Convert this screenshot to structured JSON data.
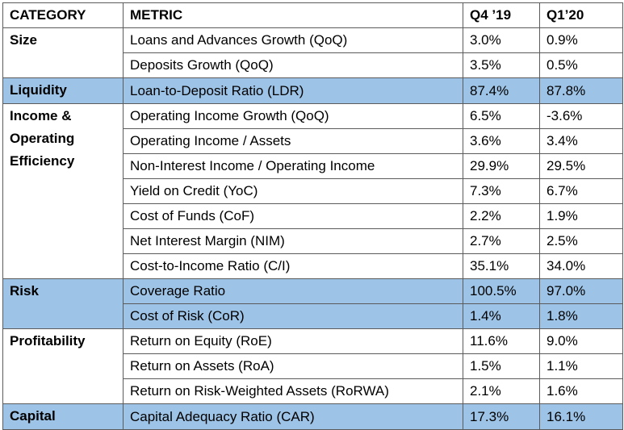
{
  "headers": [
    "CATEGORY",
    "METRIC",
    "Q4 ’19",
    "Q1’20"
  ],
  "highlight_color": "#9dc3e6",
  "groups": [
    {
      "category": "Size",
      "highlighted": false,
      "rows": [
        {
          "metric": "Loans and Advances Growth (QoQ)",
          "q4_19": "3.0%",
          "q1_20": "0.9%",
          "highlighted": false
        },
        {
          "metric": "Deposits Growth (QoQ)",
          "q4_19": "3.5%",
          "q1_20": "0.5%",
          "highlighted": false
        }
      ]
    },
    {
      "category": "Liquidity",
      "highlighted": true,
      "rows": [
        {
          "metric": "Loan-to-Deposit Ratio (LDR)",
          "q4_19": "87.4%",
          "q1_20": "87.8%",
          "highlighted": true
        }
      ]
    },
    {
      "category": "Income & Operating Efficiency",
      "highlighted": false,
      "rows": [
        {
          "metric": "Operating Income Growth (QoQ)",
          "q4_19": "6.5%",
          "q1_20": "-3.6%",
          "highlighted": false
        },
        {
          "metric": "Operating Income / Assets",
          "q4_19": "3.6%",
          "q1_20": "3.4%",
          "highlighted": false
        },
        {
          "metric": "Non-Interest Income / Operating Income",
          "q4_19": "29.9%",
          "q1_20": "29.5%",
          "highlighted": false
        },
        {
          "metric": "Yield on Credit (YoC)",
          "q4_19": "7.3%",
          "q1_20": "6.7%",
          "highlighted": false
        },
        {
          "metric": "Cost of Funds (CoF)",
          "q4_19": "2.2%",
          "q1_20": "1.9%",
          "highlighted": false
        },
        {
          "metric": "Net Interest Margin (NIM)",
          "q4_19": "2.7%",
          "q1_20": "2.5%",
          "highlighted": false
        },
        {
          "metric": "Cost-to-Income Ratio (C/I)",
          "q4_19": "35.1%",
          "q1_20": "34.0%",
          "highlighted": false
        }
      ]
    },
    {
      "category": "Risk",
      "highlighted": true,
      "rows": [
        {
          "metric": "Coverage Ratio",
          "q4_19": "100.5%",
          "q1_20": "97.0%",
          "highlighted": true
        },
        {
          "metric": "Cost of Risk (CoR)",
          "q4_19": "1.4%",
          "q1_20": "1.8%",
          "highlighted": true
        }
      ]
    },
    {
      "category": "Profitability",
      "highlighted": false,
      "rows": [
        {
          "metric": "Return on Equity (RoE)",
          "q4_19": "11.6%",
          "q1_20": "9.0%",
          "highlighted": false
        },
        {
          "metric": "Return on Assets (RoA)",
          "q4_19": "1.5%",
          "q1_20": "1.1%",
          "highlighted": false
        },
        {
          "metric": "Return on Risk-Weighted Assets (RoRWA)",
          "q4_19": "2.1%",
          "q1_20": "1.6%",
          "highlighted": false
        }
      ]
    },
    {
      "category": "Capital",
      "highlighted": true,
      "rows": [
        {
          "metric": "Capital Adequacy Ratio (CAR)",
          "q4_19": "17.3%",
          "q1_20": "16.1%",
          "highlighted": true
        }
      ]
    }
  ]
}
